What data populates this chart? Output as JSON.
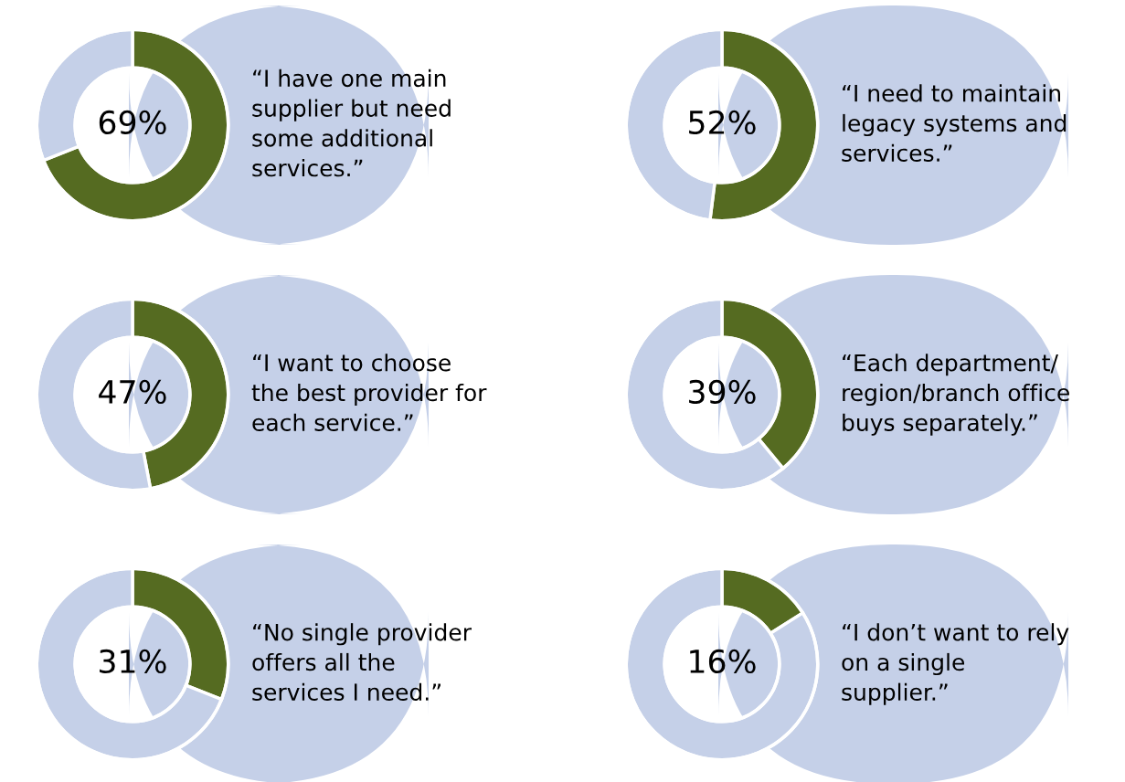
{
  "chart_data": [
    {
      "type": "donut",
      "title": "“I have one main\nsupplier but need\nsome additional\nservices.”",
      "categories": [
        null,
        null
      ],
      "values": [
        69,
        31
      ],
      "colors": [
        "#556b21",
        "#c5d0e8"
      ],
      "value_labels": [
        "69%",
        null
      ]
    },
    {
      "type": "donut",
      "title": "“I need to maintain\nlegacy systems and\nservices.”",
      "categories": [
        null,
        null
      ],
      "values": [
        52,
        48
      ],
      "colors": [
        "#556b21",
        "#c5d0e8"
      ],
      "value_labels": [
        "52%",
        null
      ]
    },
    {
      "type": "donut",
      "title": "“I want to choose\nthe best provider for\neach service.”",
      "categories": [
        null,
        null
      ],
      "values": [
        47,
        53
      ],
      "colors": [
        "#556b21",
        "#c5d0e8"
      ],
      "value_labels": [
        "47%",
        null
      ]
    },
    {
      "type": "donut",
      "title": "“Each department/\nregion/branch office\nbuys separately.”",
      "categories": [
        null,
        null
      ],
      "values": [
        39,
        61
      ],
      "colors": [
        "#556b21",
        "#c5d0e8"
      ],
      "value_labels": [
        "39%",
        null
      ]
    },
    {
      "type": "donut",
      "title": "“No single provider\noffers all the\nservices I need.”",
      "categories": [
        null,
        null
      ],
      "values": [
        31,
        69
      ],
      "colors": [
        "#556b21",
        "#c5d0e8"
      ],
      "value_labels": [
        "31%",
        null
      ]
    },
    {
      "type": "donut",
      "title": "“I don’t want to rely\non a single\nsupplier.”",
      "categories": [
        null,
        null
      ],
      "values": [
        16,
        84
      ],
      "colors": [
        "#556b21",
        "#c5d0e8"
      ],
      "value_labels": [
        "16%",
        null
      ]
    }
  ]
}
